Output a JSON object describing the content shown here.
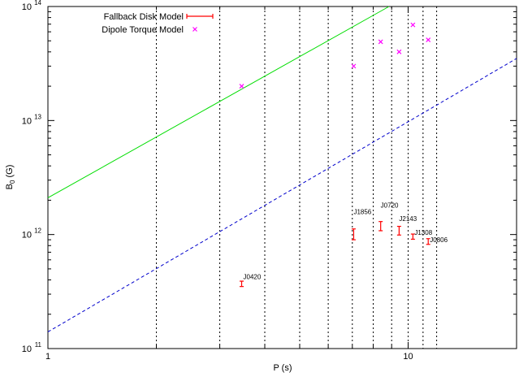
{
  "chart_data": {
    "type": "scatter",
    "xlabel": "P (s)",
    "ylabel": "B",
    "ylabel_sub": "0",
    "ylabel_unit": " (G)",
    "x_scale": "log",
    "y_scale": "log",
    "xlim": [
      1,
      20
    ],
    "ylim": [
      100000000000.0,
      100000000000000.0
    ],
    "x_ticks": [
      {
        "value": 1,
        "label": "1"
      },
      {
        "value": 10,
        "label": "10"
      }
    ],
    "y_ticks": [
      {
        "value": 100000000000.0,
        "base": "10",
        "exp": "11"
      },
      {
        "value": 1000000000000.0,
        "base": "10",
        "exp": "12"
      },
      {
        "value": 10000000000000.0,
        "base": "10",
        "exp": "13"
      },
      {
        "value": 100000000000000.0,
        "base": "10",
        "exp": "14"
      }
    ],
    "legend_position": "top-left",
    "vertical_dotted_lines_at": [
      2,
      3,
      4,
      5,
      6,
      7,
      8,
      9,
      10,
      11,
      12
    ],
    "series": [
      {
        "name": "Fallback Disk Model",
        "kind": "errorbar",
        "color": "#ff0000",
        "points": [
          {
            "label": "J0420",
            "x": 3.45,
            "y": 370000000000.0,
            "ylow": 350000000000.0,
            "yhigh": 390000000000.0
          },
          {
            "label": "J1856",
            "x": 7.06,
            "y": 1000000000000.0,
            "ylow": 900000000000.0,
            "yhigh": 1120000000000.0
          },
          {
            "label": "J0720",
            "x": 8.39,
            "y": 1180000000000.0,
            "ylow": 1080000000000.0,
            "yhigh": 1300000000000.0
          },
          {
            "label": "J2143",
            "x": 9.44,
            "y": 1080000000000.0,
            "ylow": 990000000000.0,
            "yhigh": 1180000000000.0
          },
          {
            "label": "J1308",
            "x": 10.31,
            "y": 960000000000.0,
            "ylow": 910000000000.0,
            "yhigh": 1010000000000.0
          },
          {
            "label": "J0806",
            "x": 11.37,
            "y": 870000000000.0,
            "ylow": 820000000000.0,
            "yhigh": 920000000000.0
          }
        ]
      },
      {
        "name": "Dipole Torque Model",
        "kind": "points",
        "color": "#ff00ff",
        "points": [
          {
            "x": 3.45,
            "y": 20000000000000.0
          },
          {
            "x": 7.06,
            "y": 30000000000000.0
          },
          {
            "x": 8.39,
            "y": 49000000000000.0
          },
          {
            "x": 9.44,
            "y": 40000000000000.0
          },
          {
            "x": 10.31,
            "y": 69000000000000.0
          },
          {
            "x": 11.37,
            "y": 51000000000000.0
          }
        ]
      }
    ],
    "lines": [
      {
        "style": "solid",
        "color": "#00dd00",
        "x": [
          1,
          8.85
        ],
        "y": [
          2100000000000.0,
          100000000000000.0
        ]
      },
      {
        "style": "dashed",
        "color": "#0000cc",
        "x": [
          1,
          20
        ],
        "y": [
          140000000000.0,
          35000000000000.0
        ]
      }
    ]
  }
}
